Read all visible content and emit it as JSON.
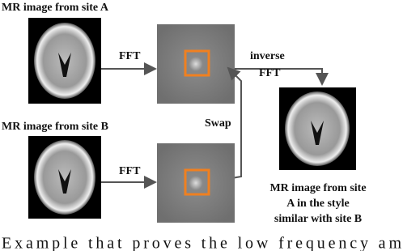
{
  "labels": {
    "site_a": "MR image from site A",
    "site_b": "MR image from site B",
    "fft_a": "FFT",
    "fft_b": "FFT",
    "inverse": [
      "inverse",
      "FFT"
    ],
    "swap": "Swap",
    "output": [
      "MR image from site",
      "A in the style",
      "similar with site B"
    ]
  },
  "caption": "Example that proves the low frequency am"
}
